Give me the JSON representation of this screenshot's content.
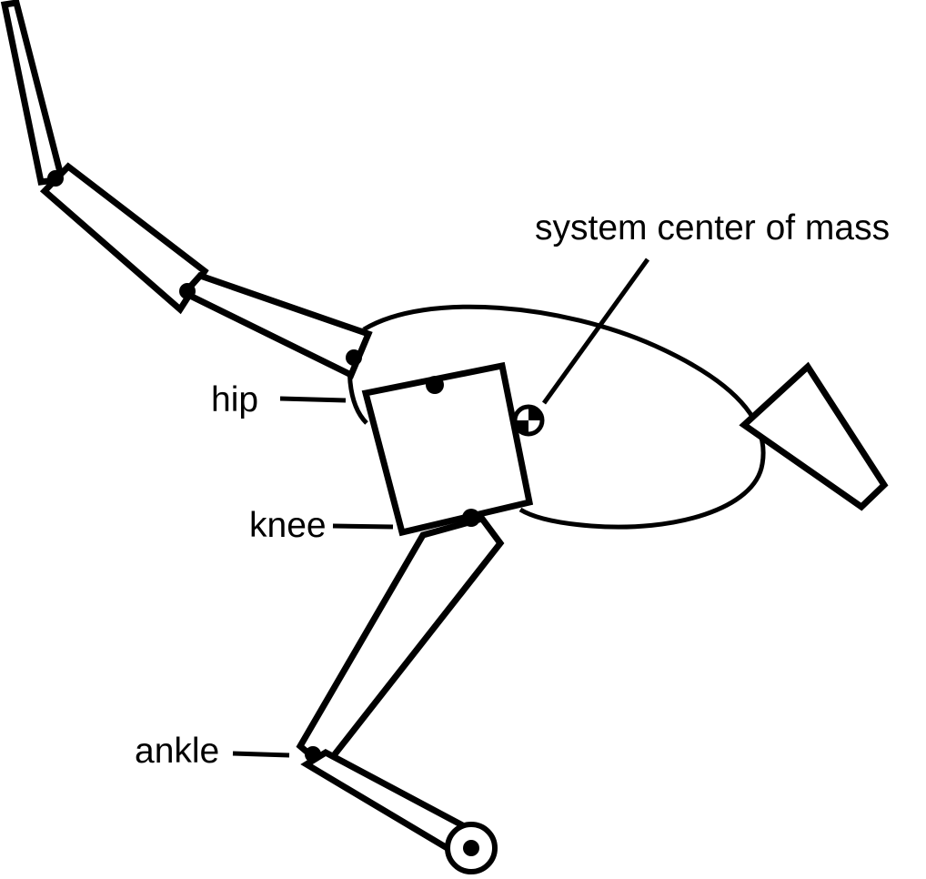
{
  "labels": {
    "hip": "hip",
    "knee": "knee",
    "ankle": "ankle",
    "center_of_mass": "system center of mass"
  },
  "colors": {
    "ink": "#000000",
    "paper": "#ffffff"
  }
}
